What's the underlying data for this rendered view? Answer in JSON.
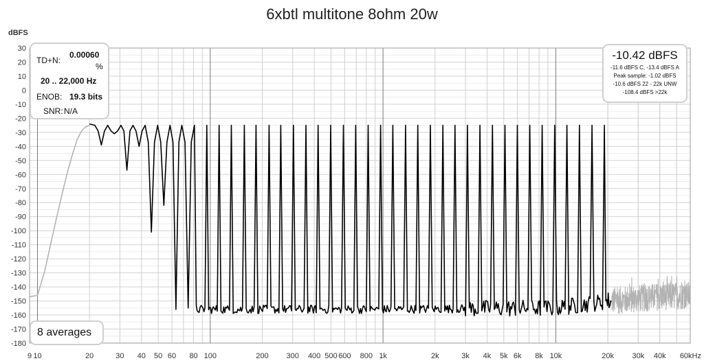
{
  "title": "6xbtl multitone 8ohm 20w",
  "chart_data": {
    "type": "line",
    "title": "6xbtl multitone 8ohm 20w",
    "ylabel": "dBFS",
    "xlabel": "",
    "x_scale": "log",
    "xlim": [
      9,
      60000
    ],
    "ylim": [
      -180,
      30
    ],
    "grid": true,
    "y_ticks": [
      30,
      20,
      10,
      0,
      -10,
      -20,
      -30,
      -40,
      -50,
      -60,
      -70,
      -80,
      -90,
      -100,
      -110,
      -120,
      -130,
      -140,
      -150,
      -160,
      -170,
      -180
    ],
    "x_ticks": [
      {
        "value": 9,
        "label": "9"
      },
      {
        "value": 10,
        "label": "10"
      },
      {
        "value": 20,
        "label": "20"
      },
      {
        "value": 30,
        "label": "30"
      },
      {
        "value": 40,
        "label": "40"
      },
      {
        "value": 50,
        "label": "50"
      },
      {
        "value": 60,
        "label": "60"
      },
      {
        "value": 80,
        "label": "80"
      },
      {
        "value": 100,
        "label": "100"
      },
      {
        "value": 200,
        "label": "200"
      },
      {
        "value": 300,
        "label": "300"
      },
      {
        "value": 400,
        "label": "400"
      },
      {
        "value": 500,
        "label": "500"
      },
      {
        "value": 600,
        "label": "600"
      },
      {
        "value": 800,
        "label": "800"
      },
      {
        "value": 1000,
        "label": "1k"
      },
      {
        "value": 2000,
        "label": "2k"
      },
      {
        "value": 3000,
        "label": "3k"
      },
      {
        "value": 4000,
        "label": "4k"
      },
      {
        "value": 5000,
        "label": "5k"
      },
      {
        "value": 6000,
        "label": "6k"
      },
      {
        "value": 8000,
        "label": "8k"
      },
      {
        "value": 10000,
        "label": "10k"
      },
      {
        "value": 20000,
        "label": "20k"
      },
      {
        "value": 30000,
        "label": "30k"
      },
      {
        "value": 40000,
        "label": "40k"
      },
      {
        "value": 60000,
        "label": "60kHz"
      }
    ],
    "series": [
      {
        "color": "#000000",
        "tone_level": -25,
        "tone_frequencies": [
          21.5,
          25.5,
          30.4,
          35.7,
          42,
          49.6,
          58.5,
          68.5,
          81,
          95.5,
          112.5,
          132.5,
          157.5,
          184,
          219,
          256,
          303,
          358,
          421,
          498,
          590,
          695,
          820,
          968,
          1140,
          1350,
          1590,
          1880,
          2220,
          2610,
          3080,
          3640,
          4300,
          5080,
          5990,
          7070,
          8340,
          9850,
          11600,
          13700,
          16200,
          19100
        ],
        "notch_minima": [
          {
            "x": 28,
            "y": -39
          },
          {
            "x": 32.5,
            "y": -31
          },
          {
            "x": 36,
            "y": -57
          },
          {
            "x": 43,
            "y": -40
          },
          {
            "x": 54,
            "y": -101
          },
          {
            "x": 68,
            "y": -82
          },
          {
            "x": 86,
            "y": -156
          },
          {
            "x": 103,
            "y": -155
          }
        ],
        "noise_floor_db": [
          {
            "x": 100,
            "y": -156
          },
          {
            "x": 1000,
            "y": -156
          },
          {
            "x": 10000,
            "y": -155
          },
          {
            "x": 21000,
            "y": -150
          }
        ],
        "x_range": [
          20,
          21000
        ]
      },
      {
        "color": "#b3b3b3",
        "points": [
          {
            "x": 9,
            "y": -147
          },
          {
            "x": 10,
            "y": -146
          },
          {
            "x": 11,
            "y": -129
          },
          {
            "x": 12,
            "y": -108
          },
          {
            "x": 13,
            "y": -89
          },
          {
            "x": 14,
            "y": -72
          },
          {
            "x": 15,
            "y": -57
          },
          {
            "x": 16,
            "y": -45
          },
          {
            "x": 17,
            "y": -35
          },
          {
            "x": 18,
            "y": -29
          },
          {
            "x": 19,
            "y": -26
          },
          {
            "x": 20,
            "y": -25
          }
        ],
        "noise_floor_db": [
          {
            "x": 21000,
            "y": -150
          },
          {
            "x": 40000,
            "y": -147
          },
          {
            "x": 60000,
            "y": -146
          }
        ],
        "x_range": [
          21000,
          60000
        ]
      }
    ]
  },
  "thd_panel": {
    "tdn_label": "TD+N:",
    "tdn_value": "0.00060",
    "tdn_unit": "%",
    "band": "20 .. 22,000 Hz",
    "enob_label": "ENOB:",
    "enob_value": "19.3 bits",
    "snr_label": "SNR:",
    "snr_value": "N/A"
  },
  "level_panel": {
    "main": "-10.42 dBFS",
    "line1": "-11.6 dBFS C, -13.4 dBFS A",
    "line2": "Peak sample: -1.02 dBFS",
    "line3": "-10.6 dBFS 22 - 22k UNW",
    "line4": "-108.4 dBFS >22k"
  },
  "averages_label": "8 averages"
}
